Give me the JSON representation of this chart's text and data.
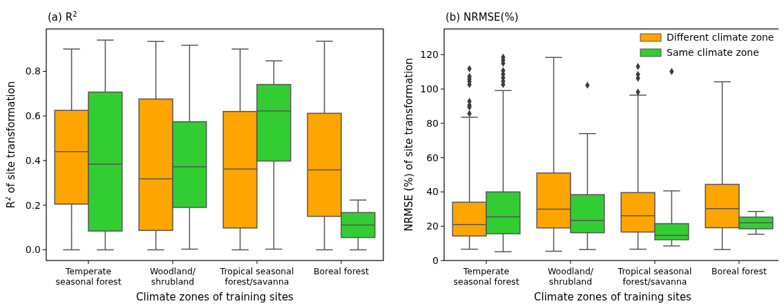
{
  "chart_data": [
    {
      "type": "box",
      "title": "(a) R$^{2}$",
      "xlabel": "Climate zones of training sites",
      "ylabel": "R$^{2}$ of site transformation",
      "categories": [
        "Temperate\nseasonal forest",
        "Woodland/\nshrubland",
        "Tropical seasonal\nforest/savanna",
        "Boreal forest"
      ],
      "ylim": [
        -0.048,
        0.99
      ],
      "yticks": [
        {
          "value": 0,
          "label": "0.0"
        },
        0.2,
        0.4,
        0.6,
        0.8
      ],
      "grid": false,
      "legend": false,
      "series": [
        {
          "color": "#ffa500",
          "boxes": [
            {
              "low": 0,
              "q1": 0.205,
              "median": 0.44,
              "q3": 0.625,
              "high": 0.9
            },
            {
              "low": 0,
              "q1": 0.087,
              "median": 0.318,
              "q3": 0.676,
              "high": 0.934
            },
            {
              "low": 0,
              "q1": 0.098,
              "median": 0.362,
              "q3": 0.62,
              "high": 0.9
            },
            {
              "low": 0,
              "q1": 0.15,
              "median": 0.358,
              "q3": 0.612,
              "high": 0.935
            }
          ]
        },
        {
          "color": "#32cd32",
          "boxes": [
            {
              "low": 0,
              "q1": 0.084,
              "median": 0.384,
              "q3": 0.707,
              "high": 0.94
            },
            {
              "low": 0.003,
              "q1": 0.19,
              "median": 0.372,
              "q3": 0.574,
              "high": 0.917
            },
            {
              "low": 0.003,
              "q1": 0.398,
              "median": 0.622,
              "q3": 0.741,
              "high": 0.847
            },
            {
              "low": 0,
              "q1": 0.055,
              "median": 0.111,
              "q3": 0.167,
              "high": 0.223
            }
          ]
        }
      ]
    },
    {
      "type": "box",
      "title": "(b) NRMSE(%)",
      "xlabel": "Climate zones of training sites",
      "ylabel": "NRMSE (%) of site transformation",
      "categories": [
        "Temperate\nseasonal forest",
        "Woodland/\nshrubland",
        "Tropical seasonal\nforest/savanna",
        "Boreal forest"
      ],
      "ylim": [
        0,
        135
      ],
      "yticks": [
        0,
        20,
        40,
        60,
        80,
        100,
        120
      ],
      "grid": false,
      "legend": "top right",
      "marker": "diamond",
      "series": [
        {
          "name": "Different climate zone",
          "color": "#ffa500",
          "boxes": [
            {
              "low": 6.6,
              "q1": 14.3,
              "median": 21,
              "q3": 34,
              "high": 83.5,
              "outliers": [
                85.7,
                89.5,
                90.5,
                92.8,
                102.6,
                104.4,
                105.8,
                107.3,
                111.8
              ]
            },
            {
              "low": 5.4,
              "q1": 19,
              "median": 29.9,
              "q3": 51,
              "high": 118.4
            },
            {
              "low": 6.6,
              "q1": 16.6,
              "median": 26.1,
              "q3": 39.6,
              "high": 96.4,
              "outliers": [
                98.2,
                106.3,
                108.5,
                113.1
              ]
            },
            {
              "low": 6.4,
              "q1": 19.1,
              "median": 30.2,
              "q3": 44.4,
              "high": 104.2
            }
          ]
        },
        {
          "name": "Same climate zone",
          "color": "#32cd32",
          "boxes": [
            {
              "low": 5.1,
              "q1": 15.6,
              "median": 25.5,
              "q3": 40,
              "high": 99.1,
              "outliers": [
                102.6,
                104.5,
                106.6,
                108.6,
                110.7,
                115,
                116.8,
                118.5
              ]
            },
            {
              "low": 6.4,
              "q1": 16.2,
              "median": 23.4,
              "q3": 38.4,
              "high": 74,
              "outliers": [
                102.2
              ]
            },
            {
              "low": 8.5,
              "q1": 12.1,
              "median": 14.7,
              "q3": 21.5,
              "high": 40.6,
              "outliers": [
                110.2
              ]
            },
            {
              "low": 15.3,
              "q1": 18.5,
              "median": 22,
              "q3": 25.3,
              "high": 28.6
            }
          ]
        }
      ]
    }
  ]
}
